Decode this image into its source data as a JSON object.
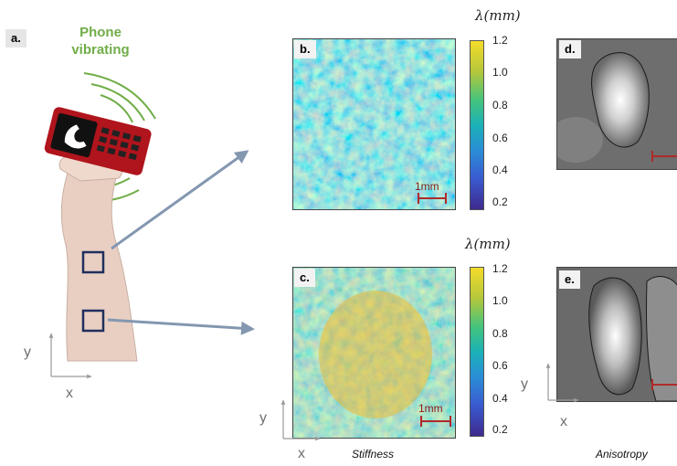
{
  "panel_a": {
    "label": "a.",
    "title_line1": "Phone",
    "title_line2": "vibrating",
    "axis_y": "y",
    "axis_x": "x"
  },
  "panel_b": {
    "label": "b.",
    "colorbar_title": "λ(mm)",
    "scale_bar": "1mm",
    "ticks": [
      "1.2",
      "1.0",
      "0.8",
      "0.6",
      "0.4",
      "0.2"
    ]
  },
  "panel_c": {
    "label": "c.",
    "colorbar_title": "λ(mm)",
    "scale_bar": "1mm",
    "ticks": [
      "1.2",
      "1.0",
      "0.8",
      "0.6",
      "0.4",
      "0.2"
    ],
    "axis_y": "y",
    "axis_x": "x"
  },
  "panel_d": {
    "label": "d."
  },
  "panel_e": {
    "label": "e.",
    "axis_y": "y",
    "axis_x": "x"
  },
  "captions": {
    "stiffness": "Stiffness",
    "anisotropy": "Anisotropy"
  },
  "colors": {
    "accent_green": "#70ad47",
    "arrow": "#8497b0",
    "scale_bar": "#b02a2a",
    "roi_box": "#1f2f5e"
  }
}
